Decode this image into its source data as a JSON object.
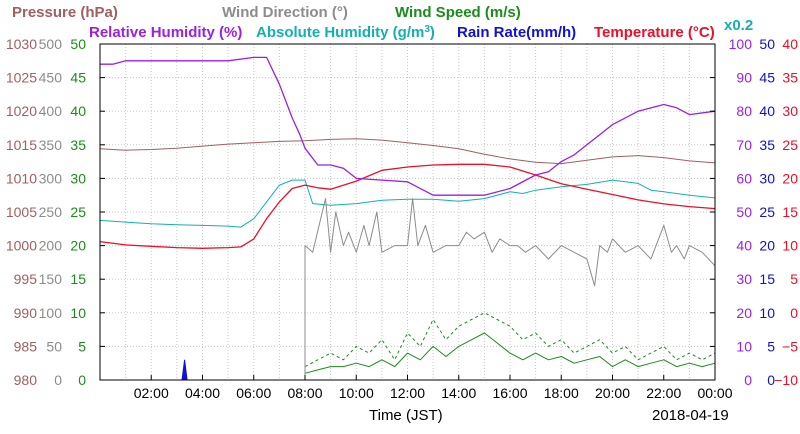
{
  "chart_data": {
    "type": "line",
    "xlabel": "Time (JST)",
    "date": "2018-04-19",
    "x_ticks": [
      "02:00",
      "04:00",
      "06:00",
      "08:00",
      "10:00",
      "12:00",
      "14:00",
      "16:00",
      "18:00",
      "20:00",
      "22:00",
      "00:00"
    ],
    "x_range_hours": [
      0,
      24
    ],
    "legend": {
      "row1": [
        {
          "id": "pressure",
          "label": "Pressure (hPa)",
          "color": "#a0605f"
        },
        {
          "id": "wdir",
          "label": "Wind Direction (°)",
          "color": "#8c8c8c"
        },
        {
          "id": "wspd",
          "label": "Wind Speed (m/s)",
          "color": "#1a8c1a"
        }
      ],
      "row2": [
        {
          "id": "rh",
          "label": "Relative Humidity (%)",
          "color": "#9b20e0"
        },
        {
          "id": "ah",
          "label": "Absolute Humidity (g/m",
          "sup": "3",
          "close": ")",
          "color": "#14b0b0",
          "suffix": "x0.2"
        },
        {
          "id": "rain",
          "label": "Rain Rate(mm/h)",
          "color": "#1010d8"
        },
        {
          "id": "temp",
          "label": "Temperature (°C)",
          "color": "#e8102a"
        }
      ]
    },
    "axes": {
      "pressure": {
        "color": "#a0605f",
        "range": [
          980,
          1030
        ],
        "ticks": [
          "980",
          "985",
          "990",
          "995",
          "1000",
          "1005",
          "1010",
          "1015",
          "1020",
          "1025",
          "1030"
        ]
      },
      "wdir": {
        "color": "#8c8c8c",
        "range": [
          0,
          500
        ],
        "ticks": [
          "0",
          "50",
          "100",
          "150",
          "200",
          "250",
          "300",
          "350",
          "400",
          "450",
          "500"
        ]
      },
      "wspd": {
        "color": "#1a8c1a",
        "range": [
          0,
          50
        ],
        "ticks": [
          "0",
          "5",
          "10",
          "15",
          "20",
          "25",
          "30",
          "35",
          "40",
          "45",
          "50"
        ]
      },
      "rh": {
        "color": "#9b20e0",
        "range": [
          0,
          100
        ],
        "ticks": [
          "0",
          "10",
          "20",
          "30",
          "40",
          "50",
          "60",
          "70",
          "80",
          "90",
          "100"
        ]
      },
      "rain": {
        "color": "#1010d8",
        "range": [
          0,
          50
        ],
        "ticks": [
          "0",
          "5",
          "10",
          "15",
          "20",
          "25",
          "30",
          "35",
          "40",
          "45",
          "50"
        ]
      },
      "temp": {
        "color": "#e8102a",
        "range": [
          -10,
          40
        ],
        "ticks": [
          "−10",
          "−5",
          "0",
          "5",
          "10",
          "15",
          "20",
          "25",
          "30",
          "35",
          "40"
        ]
      }
    },
    "series": [
      {
        "name": "Pressure (hPa)",
        "axis": "pressure",
        "color": "#a0605f",
        "width": 1,
        "x": [
          0,
          1,
          2,
          3,
          4,
          5,
          6,
          7,
          8,
          9,
          10,
          11,
          12,
          13,
          14,
          15,
          16,
          17,
          18,
          19,
          20,
          21,
          22,
          23,
          24
        ],
        "y": [
          1014.4,
          1014.2,
          1014.3,
          1014.5,
          1014.8,
          1015.1,
          1015.3,
          1015.5,
          1015.6,
          1015.8,
          1015.9,
          1015.7,
          1015.3,
          1014.9,
          1014.4,
          1013.6,
          1012.9,
          1012.4,
          1012.2,
          1012.7,
          1013.2,
          1013.4,
          1013.1,
          1012.6,
          1012.3
        ]
      },
      {
        "name": "Absolute Humidity x0.2",
        "axis": "rh",
        "color": "#14b0b0",
        "width": 1,
        "x": [
          0,
          1,
          2,
          3,
          4,
          5,
          5.5,
          6,
          6.5,
          7,
          7.5,
          8,
          8.3,
          9,
          10,
          11,
          12,
          13,
          14,
          15,
          16,
          16.5,
          17,
          18,
          19,
          20,
          21,
          21.5,
          22,
          23,
          24
        ],
        "y": [
          47.5,
          47,
          46.5,
          46.2,
          46,
          45.8,
          45.5,
          48,
          53,
          58,
          59.5,
          59.5,
          52.5,
          52,
          52.5,
          53.5,
          53.8,
          53.8,
          53.2,
          54,
          56,
          55.5,
          56.5,
          57.5,
          58.2,
          59.5,
          58.5,
          56.5,
          56,
          55,
          54.2
        ]
      },
      {
        "name": "Temperature (°C)",
        "axis": "temp",
        "color": "#e8102a",
        "width": 1.3,
        "x": [
          0,
          1,
          2,
          3,
          4,
          5,
          5.5,
          6,
          6.5,
          7,
          7.5,
          8,
          8.5,
          9,
          10,
          11,
          12,
          13,
          14,
          15,
          16,
          17,
          18,
          19,
          20,
          21,
          22,
          23,
          24
        ],
        "y": [
          10.6,
          10.1,
          9.9,
          9.7,
          9.6,
          9.7,
          9.8,
          11,
          14,
          16.5,
          18.5,
          19,
          18.6,
          18.4,
          19.6,
          21.2,
          21.7,
          22,
          22.1,
          22.1,
          21.7,
          20.5,
          19.2,
          18.4,
          17.6,
          16.8,
          16.2,
          15.8,
          15.5
        ]
      },
      {
        "name": "Relative Humidity (%)",
        "axis": "rh",
        "color": "#9b20e0",
        "width": 1.3,
        "x": [
          0,
          0.5,
          1,
          2,
          3,
          4,
          5,
          6,
          6.5,
          7,
          7.5,
          7.8,
          8,
          8.5,
          9,
          9.5,
          10,
          11,
          12,
          13,
          14,
          15,
          16,
          17,
          17.5,
          18,
          18.5,
          19,
          19.5,
          20,
          20.5,
          21,
          22,
          22.5,
          23,
          24
        ],
        "y": [
          94,
          94,
          95,
          95,
          95,
          95,
          95,
          96,
          96,
          88,
          78,
          73,
          69,
          64,
          64,
          63,
          60,
          59.5,
          59,
          55,
          55,
          55,
          57,
          61,
          62,
          65,
          67,
          70,
          73,
          76,
          78,
          80,
          82,
          81,
          79,
          80
        ]
      },
      {
        "name": "Wind Speed (m/s)",
        "axis": "wspd",
        "color": "#1a8c1a",
        "width": 1,
        "dash": "3,3",
        "x": [
          8,
          8.5,
          9,
          9.5,
          10,
          10.5,
          11,
          11.5,
          12,
          12.5,
          13,
          13.5,
          14,
          14.5,
          15,
          15.5,
          16,
          16.5,
          17,
          17.5,
          18,
          18.5,
          19,
          19.5,
          20,
          20.5,
          21,
          21.5,
          22,
          22.5,
          23,
          23.5,
          24
        ],
        "y": [
          2,
          3,
          4,
          3,
          5,
          4,
          6,
          3,
          7,
          5,
          9,
          6,
          8,
          9,
          10,
          9,
          8,
          6,
          7,
          5,
          6,
          4,
          5,
          6,
          4,
          5,
          3,
          4,
          5,
          3,
          4,
          3,
          4
        ]
      },
      {
        "name": "Wind Speed",
        "axis": "wspd",
        "color": "#1a8c1a",
        "width": 1,
        "x": [
          8,
          8.5,
          9,
          9.5,
          10,
          10.5,
          11,
          11.5,
          12,
          12.5,
          13,
          13.5,
          14,
          14.5,
          15,
          15.5,
          16,
          16.5,
          17,
          17.5,
          18,
          18.5,
          19,
          19.5,
          20,
          20.5,
          21,
          21.5,
          22,
          22.5,
          23,
          23.5,
          24
        ],
        "y": [
          1,
          1.5,
          2,
          2,
          2.5,
          2,
          3,
          2,
          4,
          3,
          5,
          3.5,
          5,
          6,
          7,
          5.5,
          4,
          3,
          4,
          3,
          3.5,
          2.5,
          3,
          3.5,
          2,
          3,
          2,
          2.5,
          3,
          2,
          2.5,
          2,
          2.5
        ]
      },
      {
        "name": "Wind Direction (°)",
        "axis": "wdir",
        "color": "#8c8c8c",
        "width": 1,
        "x": [
          8,
          8.3,
          8.8,
          9,
          9.2,
          9.5,
          9.7,
          10,
          10.3,
          10.5,
          10.8,
          11,
          11.5,
          12,
          12.2,
          12.4,
          12.7,
          13,
          13.5,
          14,
          14.3,
          14.6,
          15,
          15.3,
          15.6,
          16,
          16.3,
          16.6,
          17,
          17.5,
          18,
          18.5,
          19,
          19.3,
          19.5,
          19.8,
          20,
          20.5,
          21,
          21.5,
          22,
          22.3,
          22.5,
          22.8,
          23,
          23.5,
          24
        ],
        "y": [
          200,
          190,
          270,
          190,
          250,
          200,
          220,
          190,
          230,
          200,
          250,
          190,
          200,
          200,
          270,
          200,
          230,
          190,
          200,
          200,
          220,
          210,
          220,
          190,
          210,
          200,
          200,
          190,
          200,
          180,
          200,
          190,
          180,
          140,
          200,
          190,
          210,
          190,
          200,
          180,
          230,
          190,
          200,
          180,
          200,
          190,
          170
        ]
      },
      {
        "name": "Rain Rate(mm/h)",
        "axis": "rain",
        "color": "#1010d8",
        "width": 1,
        "x": [
          0,
          3.2,
          3.3,
          3.4,
          3.5,
          24
        ],
        "y": [
          0,
          0,
          3,
          0,
          0,
          0
        ]
      }
    ]
  }
}
